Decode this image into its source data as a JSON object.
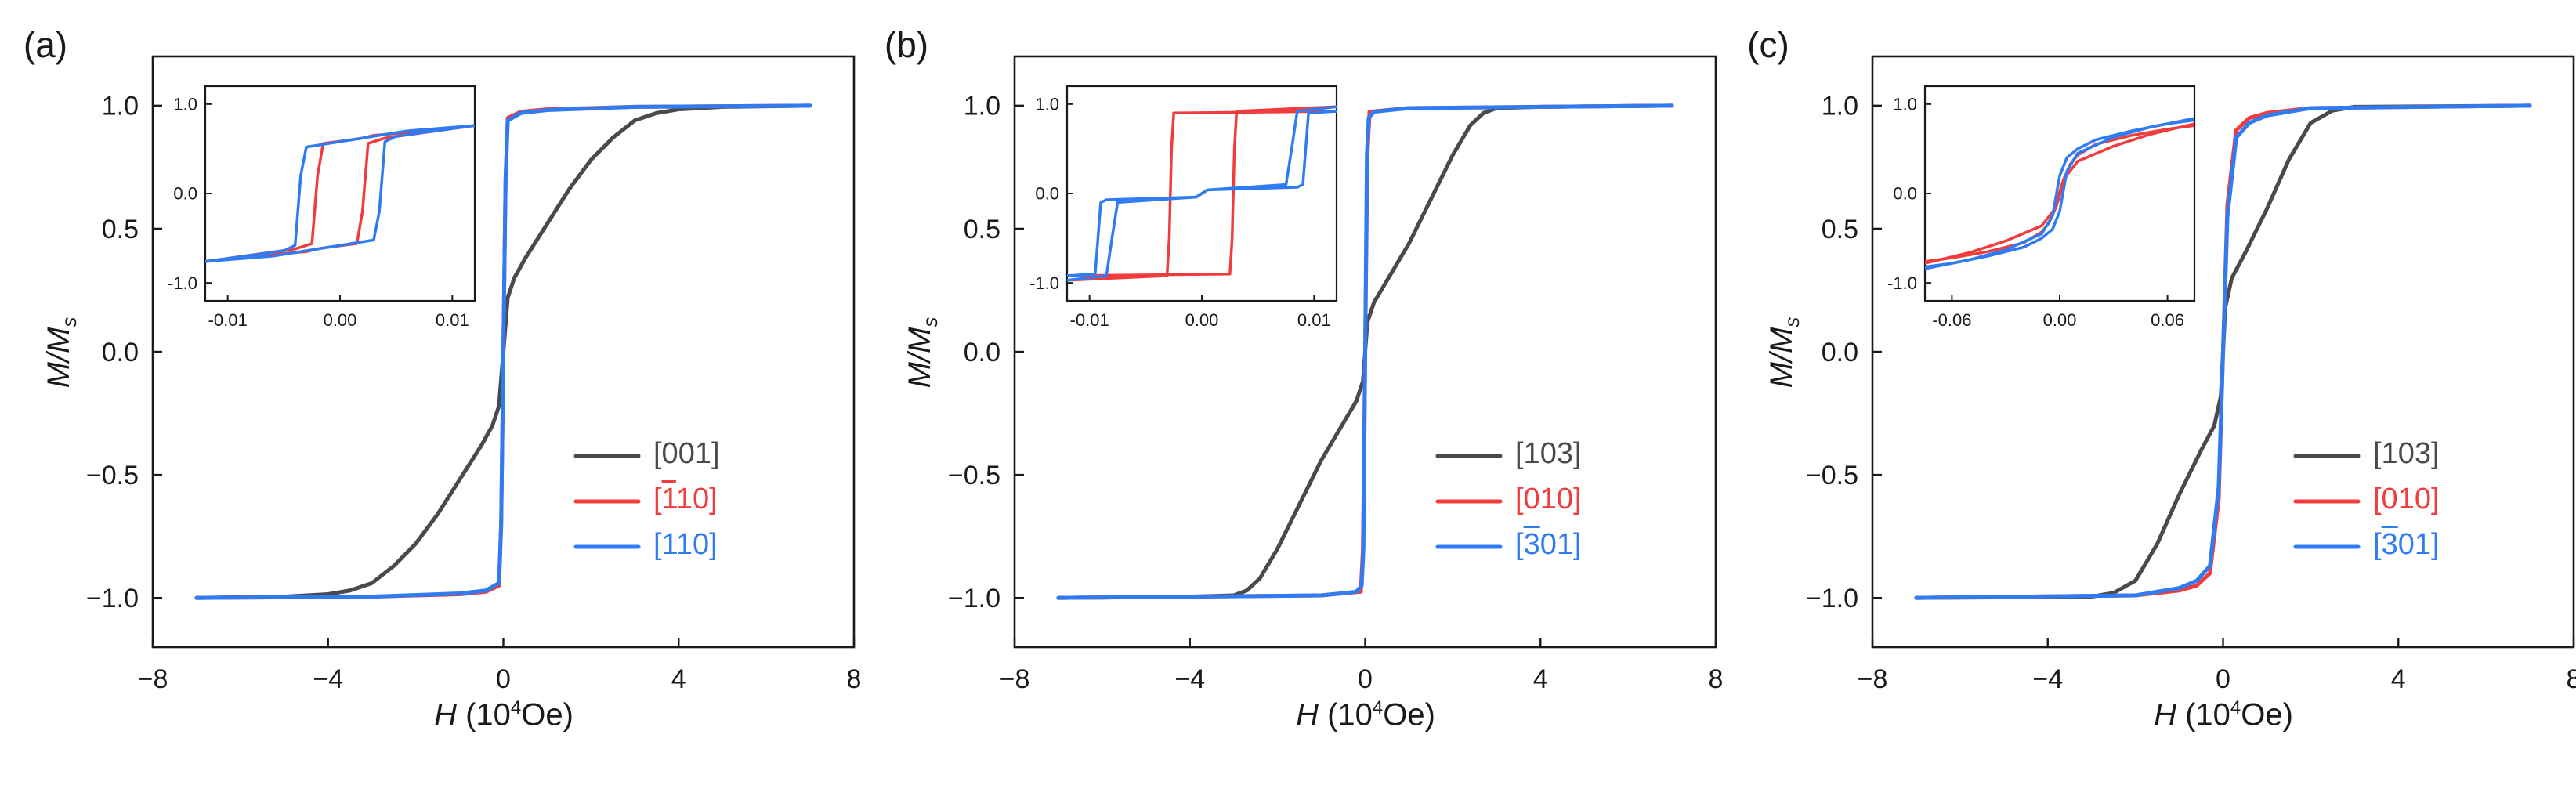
{
  "colors": {
    "black": "#4a4a4a",
    "red": "#f03c3c",
    "blue": "#2f7cf2",
    "axis": "#1a1a1a"
  },
  "panels": [
    {
      "label": "(a)",
      "xaxis": {
        "symbol": "H",
        "unit_pre": " (10",
        "unit_exp": "4",
        "unit_post": "Oe)"
      },
      "yaxis": {
        "base": "M/M",
        "sub": "s"
      },
      "legend": [
        {
          "pre": "[001]",
          "bar": "",
          "post": "",
          "color": "black"
        },
        {
          "pre": "[",
          "bar": "1",
          "post": "10]",
          "color": "red"
        },
        {
          "pre": "[110]",
          "bar": "",
          "post": "",
          "color": "blue"
        }
      ]
    },
    {
      "label": "(b)",
      "xaxis": {
        "symbol": "H",
        "unit_pre": " (10",
        "unit_exp": "4",
        "unit_post": "Oe)"
      },
      "yaxis": {
        "base": "M/M",
        "sub": "s"
      },
      "legend": [
        {
          "pre": "[103]",
          "bar": "",
          "post": "",
          "color": "black"
        },
        {
          "pre": "[010]",
          "bar": "",
          "post": "",
          "color": "red"
        },
        {
          "pre": "[",
          "bar": "3",
          "post": "01]",
          "color": "blue"
        }
      ]
    },
    {
      "label": "(c)",
      "xaxis": {
        "symbol": "H",
        "unit_pre": " (10",
        "unit_exp": "4",
        "unit_post": "Oe)"
      },
      "yaxis": {
        "base": "M/M",
        "sub": "s"
      },
      "legend": [
        {
          "pre": "[103]",
          "bar": "",
          "post": "",
          "color": "black"
        },
        {
          "pre": "[010]",
          "bar": "",
          "post": "",
          "color": "red"
        },
        {
          "pre": "[",
          "bar": "3",
          "post": "01]",
          "color": "blue"
        }
      ]
    }
  ],
  "chart_data": [
    {
      "type": "line",
      "panel": "(a)",
      "xlabel": "H (10^4 Oe)",
      "ylabel": "M/Ms",
      "xlim": [
        -8,
        8
      ],
      "ylim": [
        -1.2,
        1.2
      ],
      "xticks": [
        -8,
        -4,
        0,
        4,
        8
      ],
      "yticks": [
        -1.0,
        -0.5,
        0.0,
        0.5,
        1.0
      ],
      "xtick_labels": [
        "−8",
        "−4",
        "0",
        "4",
        "8"
      ],
      "ytick_labels": [
        "−1.0",
        "−0.5",
        "0.0",
        "0.5",
        "1.0"
      ],
      "series": [
        {
          "name": "[001]",
          "color": "black",
          "x": [
            -7,
            -5,
            -4,
            -3.5,
            -3,
            -2.5,
            -2,
            -1.5,
            -1,
            -0.5,
            -0.25,
            -0.1,
            0,
            0.1,
            0.25,
            0.5,
            1,
            1.5,
            2,
            2.5,
            3,
            3.5,
            4,
            5,
            7
          ],
          "y": [
            -1.0,
            -0.995,
            -0.985,
            -0.97,
            -0.94,
            -0.87,
            -0.78,
            -0.66,
            -0.52,
            -0.38,
            -0.3,
            -0.22,
            0.0,
            0.22,
            0.3,
            0.38,
            0.52,
            0.66,
            0.78,
            0.87,
            0.94,
            0.97,
            0.985,
            0.995,
            1.0
          ]
        },
        {
          "name": "[-110]",
          "color": "red",
          "x": [
            -7,
            -3,
            -1,
            -0.4,
            -0.1,
            -0.05,
            0,
            0.05,
            0.1,
            0.4,
            1,
            3,
            7
          ],
          "y": [
            -1.0,
            -0.995,
            -0.985,
            -0.975,
            -0.95,
            -0.7,
            0.0,
            0.7,
            0.95,
            0.975,
            0.985,
            0.995,
            1.0
          ]
        },
        {
          "name": "[110]",
          "color": "blue",
          "x": [
            -7,
            -3,
            -1,
            -0.4,
            -0.1,
            -0.05,
            0,
            0.05,
            0.1,
            0.4,
            1,
            3,
            7
          ],
          "y": [
            -1.0,
            -0.995,
            -0.982,
            -0.97,
            -0.94,
            -0.7,
            0.0,
            0.7,
            0.94,
            0.97,
            0.982,
            0.995,
            1.0
          ]
        }
      ]
    },
    {
      "type": "line",
      "panel": "(a) inset",
      "xlim": [
        -0.012,
        0.012
      ],
      "ylim": [
        -1.2,
        1.2
      ],
      "xticks": [
        -0.01,
        0.0,
        0.01
      ],
      "yticks": [
        -1.0,
        0.0,
        1.0
      ],
      "xtick_labels": [
        "-0.01",
        "0.00",
        "0.01"
      ],
      "ytick_labels": [
        "-1.0",
        "0.0",
        "1.0"
      ],
      "series": [
        {
          "name": "[-110] up",
          "color": "red",
          "x": [
            -0.012,
            -0.004,
            -0.0025,
            -0.002,
            -0.0015,
            0.001,
            0.002,
            0.003,
            0.006,
            0.012
          ],
          "y": [
            -0.76,
            -0.62,
            -0.56,
            0.2,
            0.56,
            0.6,
            0.62,
            0.65,
            0.68,
            0.76
          ]
        },
        {
          "name": "[-110] down",
          "color": "red",
          "x": [
            0.012,
            0.004,
            0.0025,
            0.002,
            0.0015,
            -0.001,
            -0.002,
            -0.003,
            -0.006,
            -0.012
          ],
          "y": [
            0.76,
            0.62,
            0.56,
            -0.2,
            -0.56,
            -0.6,
            -0.62,
            -0.65,
            -0.68,
            -0.76
          ]
        },
        {
          "name": "[110] up",
          "color": "blue",
          "x": [
            -0.012,
            -0.005,
            -0.004,
            -0.0035,
            -0.003,
            0.0,
            0.002,
            0.004,
            0.006,
            0.012
          ],
          "y": [
            -0.76,
            -0.64,
            -0.58,
            0.2,
            0.52,
            0.58,
            0.62,
            0.66,
            0.7,
            0.76
          ]
        },
        {
          "name": "[110] down",
          "color": "blue",
          "x": [
            0.012,
            0.005,
            0.004,
            0.0035,
            0.003,
            0.0,
            -0.002,
            -0.004,
            -0.006,
            -0.012
          ],
          "y": [
            0.76,
            0.64,
            0.58,
            -0.2,
            -0.52,
            -0.58,
            -0.62,
            -0.66,
            -0.7,
            -0.76
          ]
        }
      ]
    },
    {
      "type": "line",
      "panel": "(b)",
      "xlabel": "H (10^4 Oe)",
      "ylabel": "M/Ms",
      "xlim": [
        -8,
        8
      ],
      "ylim": [
        -1.2,
        1.2
      ],
      "xticks": [
        -8,
        -4,
        0,
        4,
        8
      ],
      "yticks": [
        -1.0,
        -0.5,
        0.0,
        0.5,
        1.0
      ],
      "xtick_labels": [
        "−8",
        "−4",
        "0",
        "4",
        "8"
      ],
      "ytick_labels": [
        "−1.0",
        "−0.5",
        "0.0",
        "0.5",
        "1.0"
      ],
      "series": [
        {
          "name": "[103]",
          "color": "black",
          "x": [
            -7,
            -4,
            -3,
            -2.7,
            -2.4,
            -2,
            -1.5,
            -1,
            -0.5,
            -0.2,
            -0.05,
            0,
            0.05,
            0.2,
            0.5,
            1,
            1.5,
            2,
            2.4,
            2.7,
            3,
            4,
            7
          ],
          "y": [
            -1.0,
            -0.995,
            -0.99,
            -0.97,
            -0.92,
            -0.8,
            -0.62,
            -0.44,
            -0.29,
            -0.2,
            -0.12,
            0.0,
            0.12,
            0.2,
            0.29,
            0.44,
            0.62,
            0.8,
            0.92,
            0.97,
            0.99,
            0.995,
            1.0
          ]
        },
        {
          "name": "[010]",
          "color": "red",
          "x": [
            -7,
            -1,
            -0.1,
            -0.05,
            0,
            0.05,
            0.1,
            1,
            7
          ],
          "y": [
            -1.0,
            -0.99,
            -0.975,
            -0.8,
            0.0,
            0.8,
            0.975,
            0.99,
            1.0
          ]
        },
        {
          "name": "[-301]",
          "color": "blue",
          "x": [
            -7,
            -1,
            -0.2,
            -0.08,
            -0.04,
            0,
            0.04,
            0.08,
            0.2,
            1,
            7
          ],
          "y": [
            -1.0,
            -0.99,
            -0.975,
            -0.95,
            -0.8,
            0.0,
            0.8,
            0.95,
            0.975,
            0.99,
            1.0
          ]
        }
      ]
    },
    {
      "type": "line",
      "panel": "(b) inset",
      "xlim": [
        -0.012,
        0.012
      ],
      "ylim": [
        -1.2,
        1.2
      ],
      "xticks": [
        -0.01,
        0.0,
        0.01
      ],
      "yticks": [
        -1.0,
        0.0,
        1.0
      ],
      "xtick_labels": [
        "-0.01",
        "0.00",
        "0.01"
      ],
      "ytick_labels": [
        "-1.0",
        "0.0",
        "1.0"
      ],
      "series": [
        {
          "name": "[010] up",
          "color": "red",
          "x": [
            -0.012,
            0.0025,
            0.0027,
            0.0029,
            0.0031,
            0.012
          ],
          "y": [
            -0.92,
            -0.9,
            -0.5,
            0.5,
            0.92,
            0.97
          ]
        },
        {
          "name": "[010] down",
          "color": "red",
          "x": [
            0.012,
            -0.0025,
            -0.0027,
            -0.0029,
            -0.0031,
            -0.012
          ],
          "y": [
            0.92,
            0.9,
            0.5,
            -0.5,
            -0.92,
            -0.97
          ]
        },
        {
          "name": "[-301] up",
          "color": "blue",
          "x": [
            -0.012,
            -0.0095,
            -0.009,
            -0.0085,
            -0.0005,
            0.0,
            0.0005,
            0.0075,
            0.008,
            0.0085,
            0.012
          ],
          "y": [
            -0.92,
            -0.9,
            -0.1,
            -0.07,
            -0.04,
            0.0,
            0.04,
            0.1,
            0.5,
            0.92,
            0.97
          ]
        },
        {
          "name": "[-301] down",
          "color": "blue",
          "x": [
            0.012,
            0.0095,
            0.009,
            0.0085,
            0.0005,
            0.0,
            -0.0005,
            -0.0075,
            -0.008,
            -0.0085,
            -0.012
          ],
          "y": [
            0.92,
            0.9,
            0.1,
            0.07,
            0.04,
            0.0,
            -0.04,
            -0.1,
            -0.5,
            -0.92,
            -0.97
          ]
        }
      ]
    },
    {
      "type": "line",
      "panel": "(c)",
      "xlabel": "H (10^4 Oe)",
      "ylabel": "M/Ms",
      "xlim": [
        -8,
        8
      ],
      "ylim": [
        -1.2,
        1.2
      ],
      "xticks": [
        -8,
        -4,
        0,
        4,
        8
      ],
      "yticks": [
        -1.0,
        -0.5,
        0.0,
        0.5,
        1.0
      ],
      "xtick_labels": [
        "−8",
        "−4",
        "0",
        "4",
        "8"
      ],
      "ytick_labels": [
        "−1.0",
        "−0.5",
        "0.0",
        "0.5",
        "1.0"
      ],
      "series": [
        {
          "name": "[103]",
          "color": "black",
          "x": [
            -7,
            -3,
            -2.5,
            -2,
            -1.5,
            -1,
            -0.5,
            -0.2,
            -0.05,
            0,
            0.05,
            0.2,
            0.5,
            1,
            1.5,
            2,
            2.5,
            3,
            7
          ],
          "y": [
            -1.0,
            -0.995,
            -0.98,
            -0.93,
            -0.78,
            -0.58,
            -0.4,
            -0.3,
            -0.18,
            0.0,
            0.18,
            0.3,
            0.4,
            0.58,
            0.78,
            0.93,
            0.98,
            0.995,
            1.0
          ]
        },
        {
          "name": "[010]",
          "color": "red",
          "x": [
            -7,
            -2,
            -1,
            -0.6,
            -0.3,
            -0.1,
            0,
            0.1,
            0.3,
            0.6,
            1,
            2,
            7
          ],
          "y": [
            -1.0,
            -0.99,
            -0.97,
            -0.95,
            -0.9,
            -0.6,
            0.0,
            0.6,
            0.9,
            0.95,
            0.97,
            0.99,
            1.0
          ]
        },
        {
          "name": "[-301]",
          "color": "blue",
          "x": [
            -7,
            -2,
            -1,
            -0.6,
            -0.3,
            -0.1,
            0,
            0.1,
            0.3,
            0.6,
            1,
            2,
            7
          ],
          "y": [
            -1.0,
            -0.99,
            -0.96,
            -0.93,
            -0.87,
            -0.55,
            0.0,
            0.55,
            0.87,
            0.93,
            0.96,
            0.99,
            1.0
          ]
        }
      ]
    },
    {
      "type": "line",
      "panel": "(c) inset",
      "xlim": [
        -0.075,
        0.075
      ],
      "ylim": [
        -1.2,
        1.2
      ],
      "xticks": [
        -0.06,
        0.0,
        0.06
      ],
      "yticks": [
        -1.0,
        0.0,
        1.0
      ],
      "xtick_labels": [
        "-0.06",
        "0.00",
        "0.06"
      ],
      "ytick_labels": [
        "-1.0",
        "0.0",
        "1.0"
      ],
      "series": [
        {
          "name": "[010] up",
          "color": "red",
          "x": [
            -0.075,
            -0.05,
            -0.03,
            -0.01,
            -0.003,
            0.002,
            0.006,
            0.01,
            0.02,
            0.04,
            0.06,
            0.075
          ],
          "y": [
            -0.78,
            -0.66,
            -0.53,
            -0.36,
            -0.18,
            0.15,
            0.33,
            0.43,
            0.55,
            0.65,
            0.72,
            0.76
          ]
        },
        {
          "name": "[010] down",
          "color": "red",
          "x": [
            0.075,
            0.05,
            0.03,
            0.01,
            0.003,
            -0.002,
            -0.006,
            -0.01,
            -0.02,
            -0.04,
            -0.06,
            -0.075
          ],
          "y": [
            0.78,
            0.66,
            0.53,
            0.36,
            0.18,
            -0.15,
            -0.33,
            -0.43,
            -0.55,
            -0.65,
            -0.72,
            -0.76
          ]
        },
        {
          "name": "[-301] up",
          "color": "blue",
          "x": [
            -0.075,
            -0.05,
            -0.03,
            -0.01,
            -0.004,
            0.0,
            0.004,
            0.01,
            0.02,
            0.04,
            0.06,
            0.075
          ],
          "y": [
            -0.84,
            -0.74,
            -0.63,
            -0.45,
            -0.25,
            0.2,
            0.4,
            0.5,
            0.6,
            0.7,
            0.78,
            0.82
          ]
        },
        {
          "name": "[-301] down",
          "color": "blue",
          "x": [
            0.075,
            0.05,
            0.03,
            0.01,
            0.004,
            0.0,
            -0.004,
            -0.01,
            -0.02,
            -0.04,
            -0.06,
            -0.075
          ],
          "y": [
            0.84,
            0.74,
            0.63,
            0.45,
            0.25,
            -0.2,
            -0.4,
            -0.5,
            -0.6,
            -0.7,
            -0.78,
            -0.82
          ]
        }
      ]
    }
  ]
}
